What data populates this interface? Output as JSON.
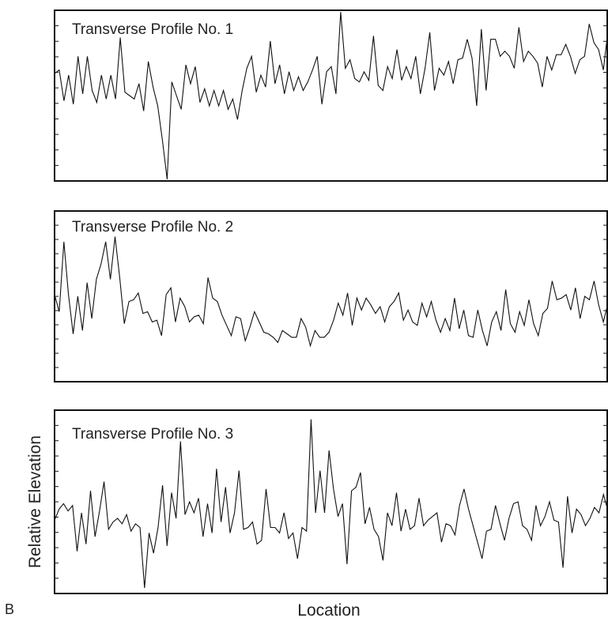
{
  "figure": {
    "panel_letter": "B",
    "ylabel": "Relative Elevation",
    "xlabel": "Location"
  },
  "chart_data": [
    {
      "type": "line",
      "title": "Transverse Profile No. 1",
      "ylim": [
        0,
        100
      ],
      "grid": false,
      "legend": "none",
      "series": [
        {
          "values": [
            63,
            65,
            47,
            62,
            45,
            73,
            51,
            73,
            53,
            46,
            62,
            48,
            62,
            48,
            84,
            52,
            50,
            48,
            57,
            41,
            70,
            55,
            44,
            24,
            1,
            58,
            50,
            42,
            68,
            57,
            67,
            46,
            54,
            44,
            53,
            44,
            53,
            42,
            48,
            36,
            53,
            66,
            73,
            52,
            62,
            55,
            82,
            57,
            68,
            51,
            64,
            53,
            61,
            53,
            58,
            65,
            73,
            45,
            64,
            67,
            51,
            99,
            66,
            71,
            60,
            58,
            64,
            59,
            85,
            56,
            53,
            67,
            60,
            77,
            59,
            67,
            60,
            73,
            51,
            66,
            87,
            53,
            66,
            62,
            70,
            57,
            71,
            72,
            83,
            72,
            44,
            89,
            53,
            83,
            83,
            73,
            76,
            73,
            66,
            90,
            70,
            76,
            73,
            69,
            55,
            73,
            65,
            74,
            74,
            80,
            73,
            63,
            71,
            73,
            92,
            81,
            77,
            65,
            88
          ]
        }
      ]
    },
    {
      "type": "line",
      "title": "Transverse Profile No. 2",
      "ylim": [
        0,
        100
      ],
      "grid": false,
      "legend": "none",
      "series": [
        {
          "values": [
            51,
            41,
            82,
            51,
            28,
            50,
            30,
            58,
            37,
            60,
            69,
            82,
            60,
            85,
            61,
            34,
            47,
            48,
            52,
            40,
            41,
            35,
            36,
            27,
            51,
            55,
            35,
            49,
            44,
            35,
            38,
            39,
            34,
            61,
            49,
            47,
            39,
            33,
            27,
            38,
            37,
            24,
            32,
            41,
            35,
            29,
            28,
            26,
            23,
            30,
            28,
            26,
            26,
            37,
            32,
            21,
            30,
            26,
            26,
            29,
            36,
            46,
            39,
            52,
            33,
            49,
            42,
            49,
            45,
            40,
            44,
            35,
            44,
            47,
            52,
            36,
            42,
            35,
            33,
            46,
            38,
            47,
            36,
            29,
            37,
            30,
            49,
            31,
            42,
            27,
            26,
            42,
            30,
            21,
            35,
            41,
            30,
            54,
            34,
            29,
            41,
            33,
            48,
            34,
            27,
            40,
            43,
            59,
            48,
            49,
            51,
            42,
            55,
            37,
            50,
            48,
            59,
            45,
            35,
            46
          ]
        }
      ]
    },
    {
      "type": "line",
      "title": "Transverse Profile No. 3",
      "ylim": [
        0,
        100
      ],
      "grid": false,
      "legend": "none",
      "series": [
        {
          "values": [
            40,
            46,
            49,
            45,
            48,
            23,
            44,
            27,
            56,
            31,
            45,
            61,
            35,
            39,
            41,
            38,
            43,
            34,
            38,
            36,
            3,
            33,
            22,
            36,
            59,
            26,
            55,
            41,
            83,
            43,
            50,
            44,
            52,
            31,
            49,
            33,
            68,
            39,
            58,
            33,
            44,
            67,
            35,
            36,
            39,
            27,
            29,
            57,
            36,
            36,
            33,
            44,
            30,
            33,
            19,
            36,
            34,
            95,
            44,
            67,
            44,
            78,
            57,
            42,
            49,
            16,
            56,
            58,
            66,
            38,
            47,
            35,
            31,
            18,
            44,
            37,
            55,
            34,
            46,
            35,
            37,
            52,
            37,
            40,
            42,
            44,
            28,
            38,
            37,
            32,
            48,
            57,
            46,
            37,
            28,
            19,
            34,
            35,
            48,
            38,
            29,
            41,
            49,
            50,
            37,
            35,
            29,
            48,
            37,
            42,
            50,
            40,
            39,
            14,
            53,
            33,
            46,
            43,
            37,
            41,
            47,
            44,
            54,
            45
          ]
        }
      ]
    }
  ]
}
